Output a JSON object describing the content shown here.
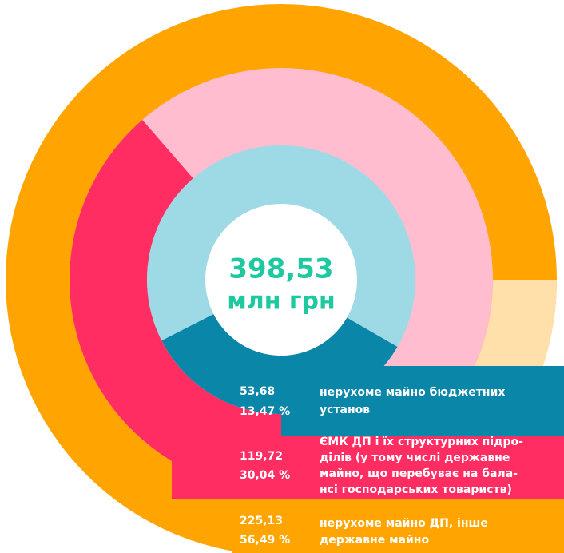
{
  "center": {
    "value": "398,53",
    "unit": "млн грн"
  },
  "items": [
    {
      "value": "53,68",
      "percent": "13,47 %",
      "label": [
        "нерухоме майно бюджетних",
        "установ"
      ]
    },
    {
      "value": "119,72",
      "percent": "30,04 %",
      "label": [
        "ЄМК ДП і їх структурних підро-",
        "ділів (у тому числі державне",
        "майно, що перебуває на бала-",
        "нсі господарських товариств)"
      ]
    },
    {
      "value": "225,13",
      "percent": "56,49 %",
      "label": [
        "нерухоме майно ДП, інше",
        "державне майно"
      ]
    }
  ]
}
